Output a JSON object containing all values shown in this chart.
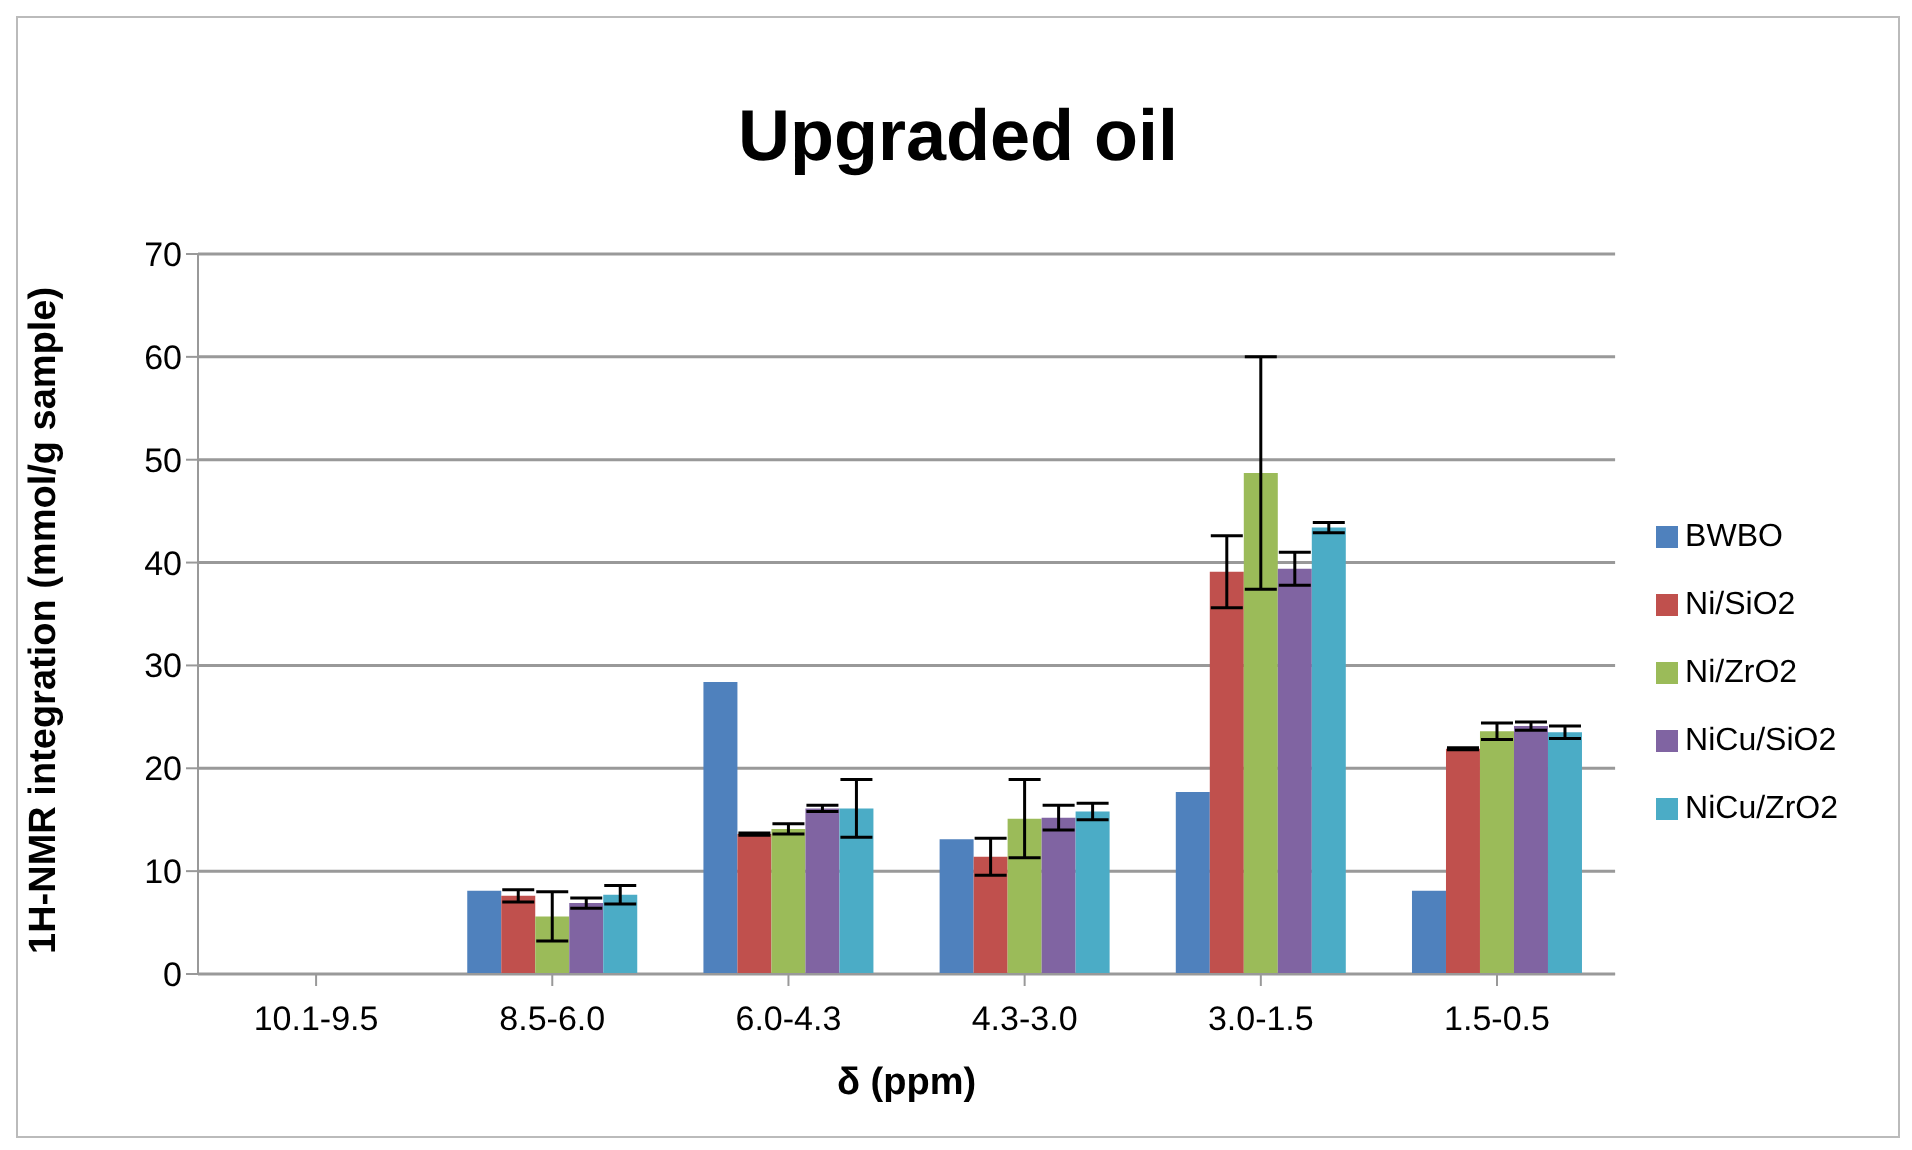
{
  "chart_data": {
    "type": "bar",
    "title": "Upgraded oil",
    "xlabel": "δ (ppm)",
    "ylabel": "1H-NMR integration (mmol/g sample)",
    "categories": [
      "10.1-9.5",
      "8.5-6.0",
      "6.0-4.3",
      "4.3-3.0",
      "3.0-1.5",
      "1.5-0.5"
    ],
    "series": [
      {
        "name": "BWBO",
        "color": "#4f81bd",
        "values": [
          0,
          8.1,
          28.4,
          13.1,
          17.7,
          8.1
        ]
      },
      {
        "name": "Ni/SiO2",
        "color": "#c0504d",
        "values": [
          0,
          7.6,
          13.6,
          11.4,
          39.1,
          21.9
        ],
        "errors": [
          null,
          0.6,
          0.1,
          1.8,
          3.5,
          0.1
        ]
      },
      {
        "name": "Ni/ZrO2",
        "color": "#9bbb59",
        "values": [
          0,
          5.6,
          14.1,
          15.1,
          48.7,
          23.6
        ],
        "errors": [
          null,
          2.4,
          0.5,
          3.8,
          11.3,
          0.8
        ]
      },
      {
        "name": "NiCu/SiO2",
        "color": "#8064a2",
        "values": [
          0,
          6.9,
          16.1,
          15.2,
          39.4,
          24.1
        ],
        "errors": [
          null,
          0.5,
          0.3,
          1.2,
          1.6,
          0.4
        ]
      },
      {
        "name": "NiCu/ZrO2",
        "color": "#4bacc6",
        "values": [
          0,
          7.7,
          16.1,
          15.8,
          43.4,
          23.5
        ],
        "errors": [
          null,
          0.9,
          2.8,
          0.8,
          0.5,
          0.6
        ]
      }
    ],
    "ylim": [
      0,
      70
    ],
    "yticks": [
      0,
      10,
      20,
      30,
      40,
      50,
      60,
      70
    ],
    "grid": "y",
    "legend": "right"
  }
}
